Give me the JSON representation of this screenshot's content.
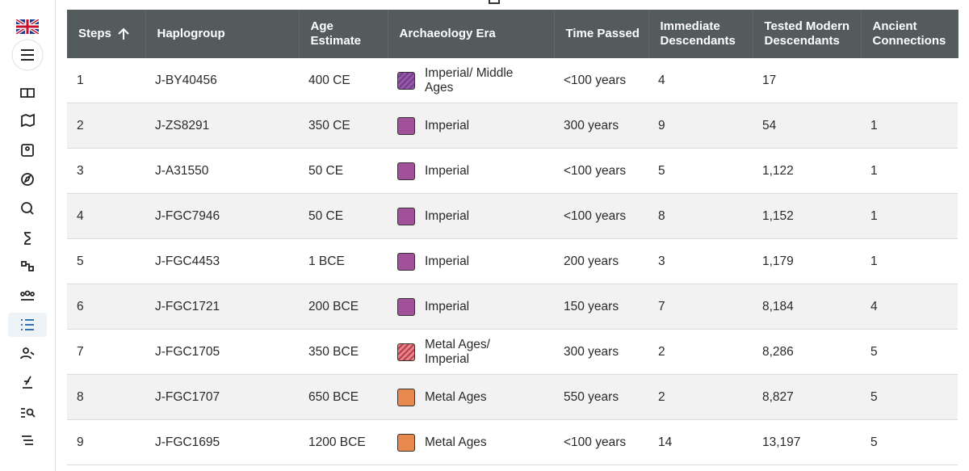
{
  "table": {
    "columns": [
      "Steps",
      "Haplogroup",
      "Age Estimate",
      "Archaeology Era",
      "Time Passed",
      "Immediate Descendants",
      "Tested Modern Descendants",
      "Ancient Connections"
    ],
    "rows": [
      {
        "cells": [
          "1",
          "J-BY40456",
          "400 CE",
          "Imperial/ Middle Ages",
          "<100 years",
          "4",
          "17",
          null
        ],
        "era_colors": [
          "#9b56a6",
          "#6e3f8f"
        ]
      },
      {
        "cells": [
          "2",
          "J-ZS8291",
          "350 CE",
          "Imperial",
          "300 years",
          "9",
          "54",
          "1"
        ],
        "era_colors": [
          "#a2509a"
        ]
      },
      {
        "cells": [
          "3",
          "J-A31550",
          "50 CE",
          "Imperial",
          "<100 years",
          "5",
          "1,122",
          "1"
        ],
        "era_colors": [
          "#a2509a"
        ]
      },
      {
        "cells": [
          "4",
          "J-FGC7946",
          "50 CE",
          "Imperial",
          "<100 years",
          "8",
          "1,152",
          "1"
        ],
        "era_colors": [
          "#a2509a"
        ]
      },
      {
        "cells": [
          "5",
          "J-FGC4453",
          "1 BCE",
          "Imperial",
          "200 years",
          "3",
          "1,179",
          "1"
        ],
        "era_colors": [
          "#a2509a"
        ]
      },
      {
        "cells": [
          "6",
          "J-FGC1721",
          "200 BCE",
          "Imperial",
          "150 years",
          "7",
          "8,184",
          "4"
        ],
        "era_colors": [
          "#a2509a"
        ]
      },
      {
        "cells": [
          "7",
          "J-FGC1705",
          "350 BCE",
          "Metal Ages/ Imperial",
          "300 years",
          "2",
          "8,286",
          "5"
        ],
        "era_colors": [
          "#e8848a",
          "#b8404a"
        ]
      },
      {
        "cells": [
          "8",
          "J-FGC1707",
          "650 BCE",
          "Metal Ages",
          "550 years",
          "2",
          "8,827",
          "5"
        ],
        "era_colors": [
          "#e8894e"
        ]
      },
      {
        "cells": [
          "9",
          "J-FGC1695",
          "1200 BCE",
          "Metal Ages",
          "<100 years",
          "14",
          "13,197",
          "5"
        ],
        "era_colors": [
          "#e8894e"
        ]
      }
    ]
  }
}
